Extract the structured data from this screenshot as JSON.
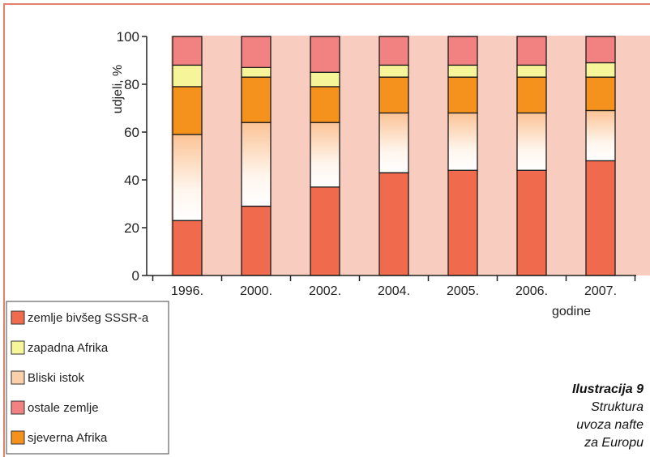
{
  "chart_data": {
    "type": "bar",
    "stacked": true,
    "categories": [
      "1996.",
      "2000.",
      "2002.",
      "2004.",
      "2005.",
      "2006.",
      "2007."
    ],
    "ylabel": "udjeli, %",
    "xlabel": "godine",
    "ylim": [
      0,
      100
    ],
    "yticks": [
      "0",
      "20",
      "40",
      "60",
      "80",
      "100"
    ],
    "legend_position": "bottom-left",
    "series": [
      {
        "name": "zemlje bivšeg SSSR-a",
        "color": "#f06b4e",
        "values": [
          23,
          29,
          37,
          43,
          44,
          44,
          48
        ]
      },
      {
        "name": "Bliski istok",
        "color": "#fbcfa9",
        "values": [
          36,
          35,
          27,
          25,
          24,
          24,
          21
        ]
      },
      {
        "name": "sjeverna Afrika",
        "color": "#f5921e",
        "values": [
          20,
          19,
          15,
          15,
          15,
          15,
          14
        ]
      },
      {
        "name": "zapadna Afrika",
        "color": "#f7f59a",
        "values": [
          9,
          4,
          6,
          5,
          5,
          5,
          6
        ]
      },
      {
        "name": "ostale zemlje",
        "color": "#f28282",
        "values": [
          12,
          13,
          15,
          12,
          12,
          12,
          11
        ]
      }
    ],
    "legend_order": [
      0,
      3,
      1,
      4,
      2
    ]
  },
  "caption": {
    "title": "Ilustracija 9",
    "lines": [
      "Struktura",
      "uvoza nafte",
      "za Europu"
    ]
  }
}
